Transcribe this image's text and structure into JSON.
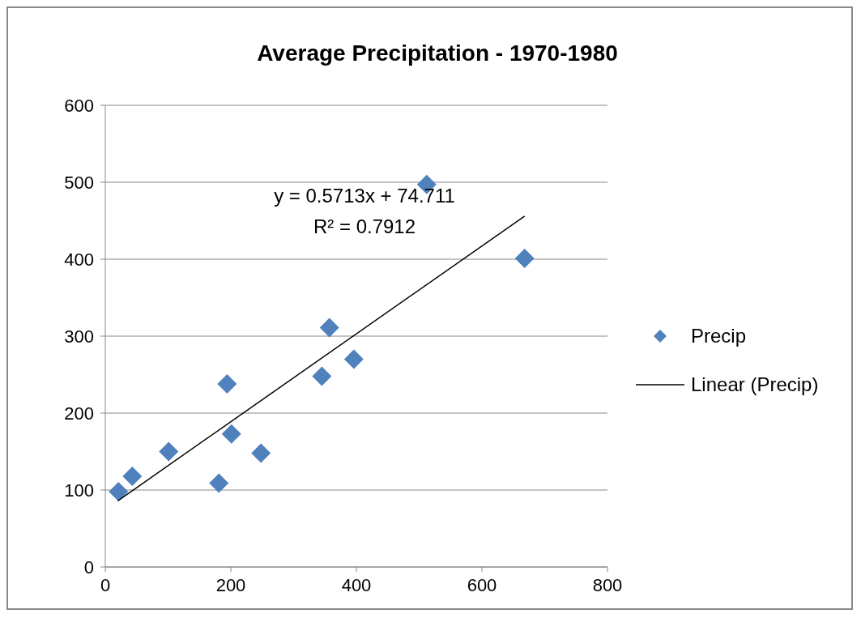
{
  "chart_data": {
    "type": "scatter",
    "title": "Average Precipitation - 1970-1980",
    "series": [
      {
        "name": "Precip",
        "marker": "diamond",
        "color": "#4f81bd",
        "x": [
          21,
          43,
          101,
          181,
          194,
          201,
          248,
          345,
          357,
          396,
          512,
          668
        ],
        "values": [
          98,
          118,
          150,
          109,
          238,
          173,
          148,
          248,
          311,
          270,
          497,
          401
        ]
      },
      {
        "name": "Linear (Precip)",
        "type": "line",
        "marker": "none",
        "color": "#000000",
        "x": [
          20,
          668
        ],
        "values": [
          86,
          456
        ]
      }
    ],
    "annotations": [
      "y = 0.5713x + 74.711",
      "R² = 0.7912"
    ],
    "xlim": [
      0,
      800
    ],
    "xticks": [
      0,
      200,
      400,
      600,
      800
    ],
    "ylim": [
      0,
      600
    ],
    "yticks": [
      0,
      100,
      200,
      300,
      400,
      500,
      600
    ],
    "grid": "y",
    "legend": "right"
  }
}
